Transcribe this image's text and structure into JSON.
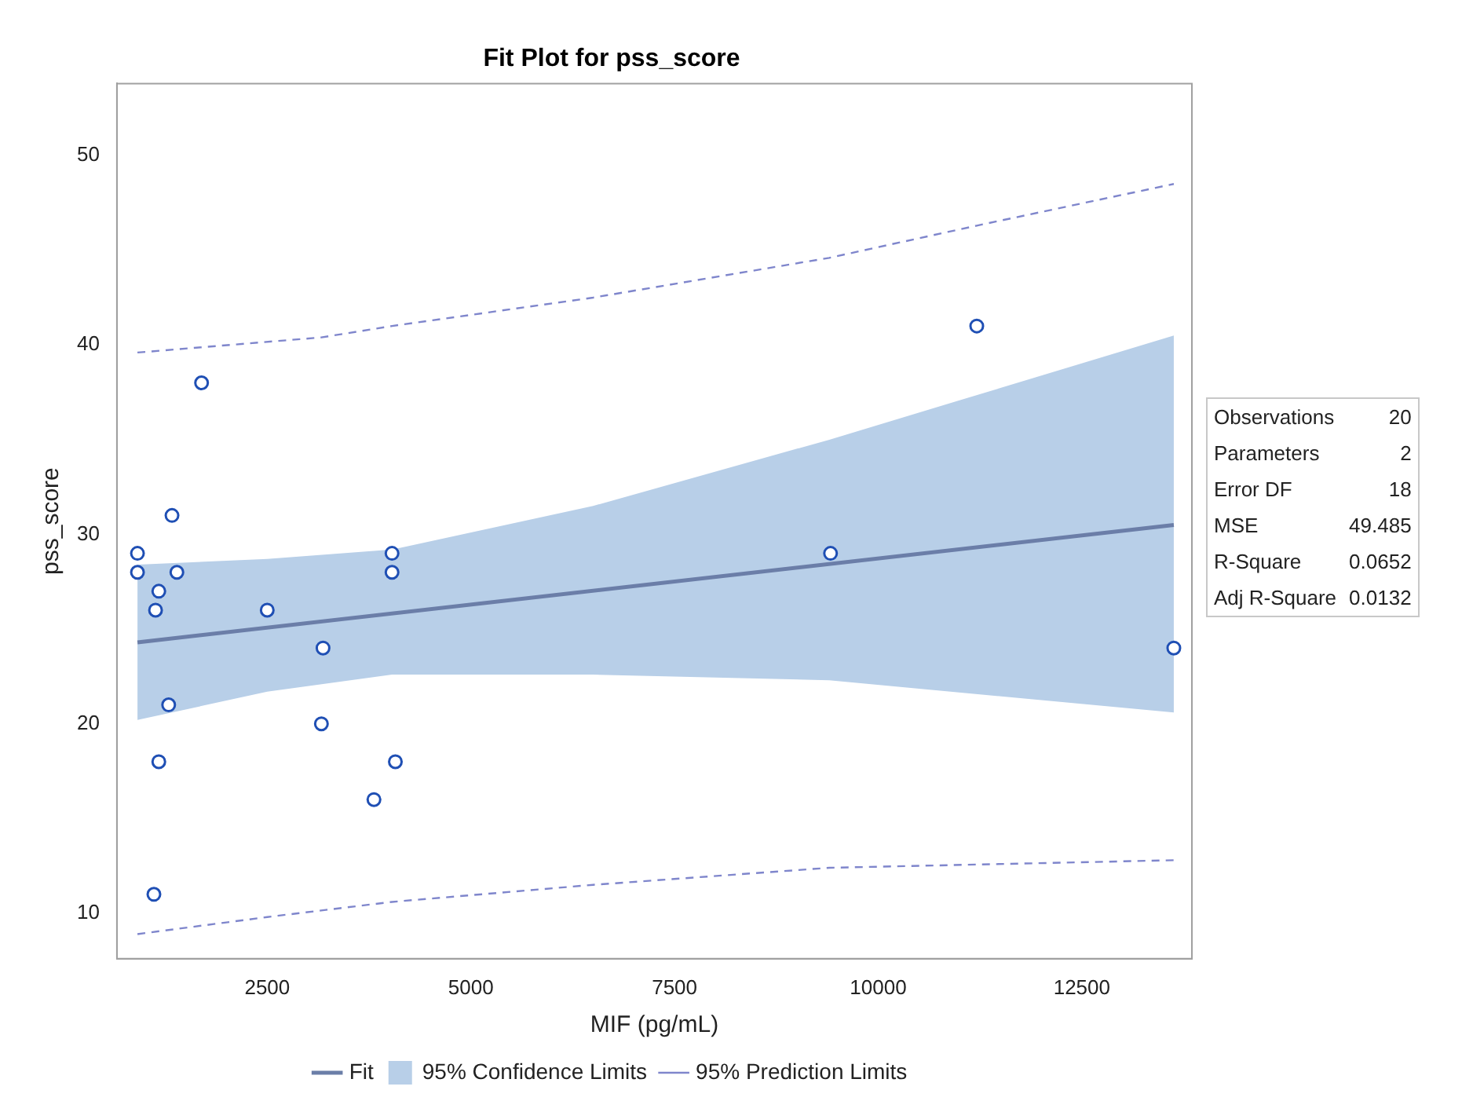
{
  "chart_data": {
    "type": "scatter",
    "title": "Fit Plot for pss_score",
    "xlabel": "MIF (pg/mL)",
    "ylabel": "pss_score",
    "xlim": [
      655,
      13851
    ],
    "xticks": [
      2500,
      5000,
      7500,
      10000,
      12500
    ],
    "ylim": [
      7.6,
      53.8
    ],
    "yticks": [
      10,
      20,
      30,
      40,
      50
    ],
    "grid": false,
    "legend": "bottom",
    "annotations": [
      "Observations 20",
      "Parameters 2",
      "Error DF 18",
      "MSE 49.485",
      "R-Square 0.0652",
      "Adj R-Square 0.0132"
    ],
    "series": [
      {
        "name": "Fit",
        "type": "line",
        "color": "#6b7ea8",
        "line_style": "solid",
        "marker": "none",
        "x": [
          907,
          13629
        ],
        "values": [
          24.3,
          30.5
        ]
      },
      {
        "name": "95% Confidence Limits",
        "type": "line",
        "color": "#b8cfe8",
        "marker": "none",
        "x": [
          907,
          2500,
          4032,
          6500,
          9400,
          13629
        ],
        "values": [
          null,
          null,
          null,
          null,
          null,
          null
        ],
        "lower": [
          20.2,
          21.7,
          22.6,
          22.6,
          22.3,
          20.6
        ],
        "upper": [
          28.4,
          28.7,
          29.2,
          31.5,
          35.0,
          40.5
        ]
      },
      {
        "name": "95% Prediction Limits",
        "type": "line",
        "color": "#7f86cc",
        "line_style": "dashed",
        "marker": "none",
        "x": [
          907,
          3165,
          4032,
          6500,
          9400,
          11210,
          13629
        ],
        "values": [
          39.6,
          40.4,
          41.0,
          42.5,
          44.6,
          46.3,
          48.5
        ]
      },
      {
        "type": "line",
        "color": "#7f86cc",
        "line_style": "dashed",
        "marker": "none",
        "x": [
          907,
          2500,
          4032,
          6500,
          9400,
          13629
        ],
        "values": [
          8.9,
          9.8,
          10.6,
          11.5,
          12.4,
          12.8
        ]
      },
      {
        "marker": "circle",
        "color": "#1f4fb4",
        "x": [
          907,
          907,
          1169,
          1129,
          1290,
          1331,
          1169,
          1109,
          1391,
          1694,
          2500,
          3185,
          3165,
          3810,
          4032,
          4032,
          4073,
          9415,
          11210,
          13629
        ],
        "values": [
          29,
          28,
          27,
          26,
          21,
          31,
          18,
          11,
          28,
          38,
          26,
          24,
          20,
          16,
          29,
          28,
          18,
          29,
          41,
          24
        ]
      }
    ]
  }
}
